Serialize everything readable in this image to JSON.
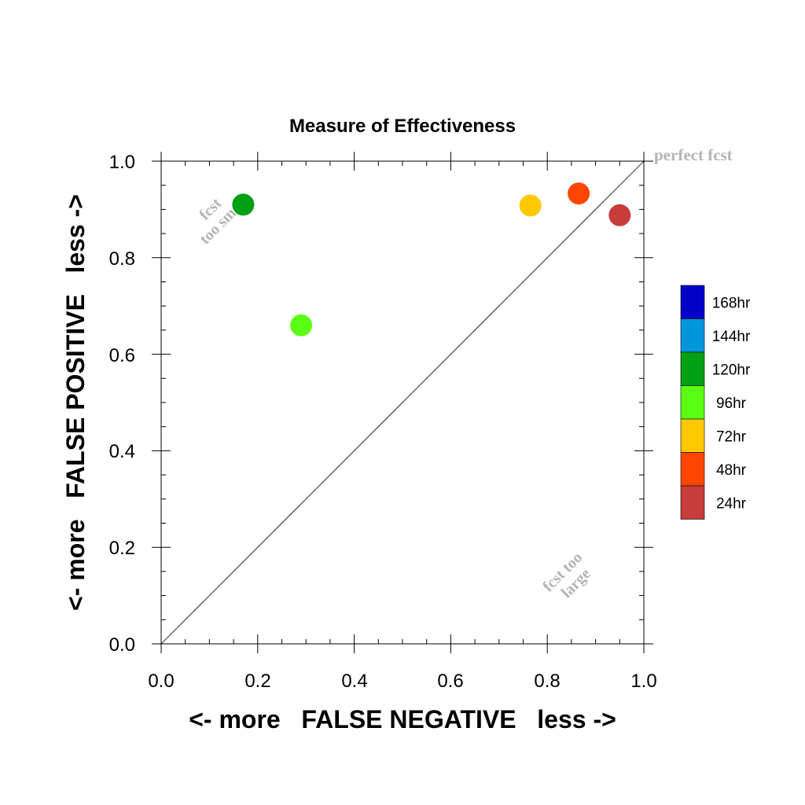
{
  "chart_data": {
    "type": "scatter",
    "title": "Measure of Effectiveness",
    "xlabel": "<- more   FALSE NEGATIVE   less ->",
    "ylabel": "<- more   FALSE POSITIVE   less ->",
    "xlim": [
      0.0,
      1.0
    ],
    "ylim": [
      0.0,
      1.0
    ],
    "x_ticks": [
      "0.0",
      "0.2",
      "0.4",
      "0.6",
      "0.8",
      "1.0"
    ],
    "y_ticks": [
      "0.0",
      "0.2",
      "0.4",
      "0.6",
      "0.8",
      "1.0"
    ],
    "grid": false,
    "diagonal_line": true,
    "legend_position": "right",
    "legend": [
      {
        "label": "168hr",
        "color": "#0000c8"
      },
      {
        "label": "144hr",
        "color": "#0096dc"
      },
      {
        "label": "120hr",
        "color": "#00a014"
      },
      {
        "label": "96hr",
        "color": "#5aff14"
      },
      {
        "label": "72hr",
        "color": "#ffc800"
      },
      {
        "label": "48hr",
        "color": "#ff4600"
      },
      {
        "label": "24hr",
        "color": "#c83c3c"
      }
    ],
    "points": [
      {
        "series": "120hr",
        "x": 0.17,
        "y": 0.91,
        "color": "#00a014"
      },
      {
        "series": "96hr",
        "x": 0.29,
        "y": 0.66,
        "color": "#5aff14"
      },
      {
        "series": "72hr",
        "x": 0.765,
        "y": 0.908,
        "color": "#ffc800"
      },
      {
        "series": "48hr",
        "x": 0.865,
        "y": 0.933,
        "color": "#ff4600"
      },
      {
        "series": "24hr",
        "x": 0.95,
        "y": 0.888,
        "color": "#c83c3c"
      }
    ],
    "annotations": {
      "perfect": "perfect fcst",
      "small_line1": "fcst",
      "small_line2": "too small",
      "large_line1": "fcst too",
      "large_line2": "large"
    }
  }
}
